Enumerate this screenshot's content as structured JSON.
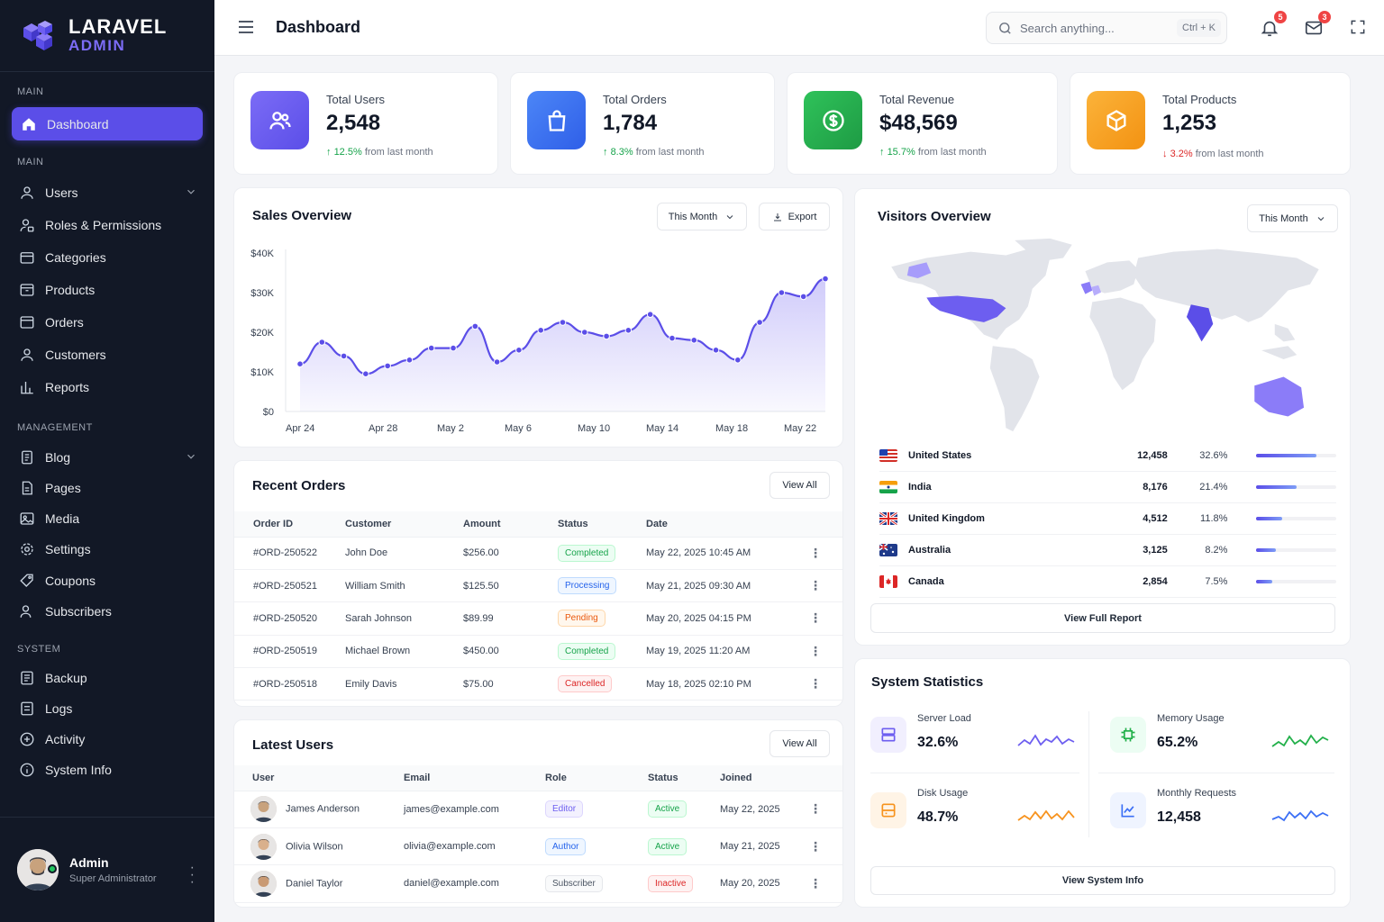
{
  "app": {
    "logo_line1": "LARAVEL",
    "logo_line2": "ADMIN"
  },
  "sidebar": {
    "sections": [
      "MAIN",
      "MAIN",
      "MANAGEMENT",
      "SYSTEM"
    ],
    "items": [
      "Dashboard",
      "Users",
      "Roles & Permissions",
      "Categories",
      "Products",
      "Orders",
      "Customers",
      "Reports",
      "Blog",
      "Pages",
      "Media",
      "Settings",
      "Coupons",
      "Subscribers",
      "Backup",
      "Logs",
      "Activity",
      "System Info"
    ],
    "user": {
      "name": "Admin",
      "role": "Super Administrator"
    }
  },
  "header": {
    "title": "Dashboard",
    "search_placeholder": "Search anything...",
    "shortcut": "Ctrl + K",
    "notifications_count": "5",
    "messages_count": "3"
  },
  "stats": [
    {
      "label": "Total Users",
      "value": "2,548",
      "change": "12.5%",
      "suffix": "from last month",
      "trend": "up",
      "color": "#6d5ef0"
    },
    {
      "label": "Total Orders",
      "value": "1,784",
      "change": "8.3%",
      "suffix": "from last month",
      "trend": "up",
      "color": "#3b6ff5"
    },
    {
      "label": "Total Revenue",
      "value": "$48,569",
      "change": "15.7%",
      "suffix": "from last month",
      "trend": "up",
      "color": "#22b04a"
    },
    {
      "label": "Total Products",
      "value": "1,253",
      "change": "3.2%",
      "suffix": "from last month",
      "trend": "down",
      "color": "#f7a21e"
    }
  ],
  "sales": {
    "title": "Sales Overview",
    "period": "This Month",
    "export": "Export"
  },
  "chart_data": {
    "type": "area",
    "title": "Sales Overview",
    "ylim": [
      0,
      40000
    ],
    "yticks": [
      "$0",
      "$10K",
      "$20K",
      "$30K",
      "$40K"
    ],
    "xticks": [
      "Apr 24",
      "Apr 28",
      "May 2",
      "May 6",
      "May 10",
      "May 14",
      "May 18",
      "May 22"
    ],
    "series": [
      {
        "values": [
          12000,
          17500,
          14000,
          9500,
          11500,
          13000,
          16000,
          16000,
          21500,
          12500,
          15500,
          20500,
          22500,
          20000,
          19000,
          20500,
          24500,
          18500,
          18000,
          15500,
          13000,
          22500,
          30000,
          29000,
          33500
        ]
      }
    ]
  },
  "orders": {
    "title": "Recent Orders",
    "view_all": "View All",
    "columns": [
      "Order ID",
      "Customer",
      "Amount",
      "Status",
      "Date"
    ],
    "rows": [
      {
        "id": "#ORD-250522",
        "customer": "John Doe",
        "amount": "$256.00",
        "status": "Completed",
        "date": "May 22, 2025 10:45 AM"
      },
      {
        "id": "#ORD-250521",
        "customer": "William Smith",
        "amount": "$125.50",
        "status": "Processing",
        "date": "May 21, 2025 09:30 AM"
      },
      {
        "id": "#ORD-250520",
        "customer": "Sarah Johnson",
        "amount": "$89.99",
        "status": "Pending",
        "date": "May 20, 2025 04:15 PM"
      },
      {
        "id": "#ORD-250519",
        "customer": "Michael Brown",
        "amount": "$450.00",
        "status": "Completed",
        "date": "May 19, 2025 11:20 AM"
      },
      {
        "id": "#ORD-250518",
        "customer": "Emily Davis",
        "amount": "$75.00",
        "status": "Cancelled",
        "date": "May 18, 2025 02:10 PM"
      }
    ]
  },
  "users": {
    "title": "Latest Users",
    "view_all": "View All",
    "columns": [
      "User",
      "Email",
      "Role",
      "Status",
      "Joined"
    ],
    "rows": [
      {
        "name": "James Anderson",
        "email": "james@example.com",
        "role": "Editor",
        "status": "Active",
        "joined": "May 22, 2025"
      },
      {
        "name": "Olivia Wilson",
        "email": "olivia@example.com",
        "role": "Author",
        "status": "Active",
        "joined": "May 21, 2025"
      },
      {
        "name": "Daniel Taylor",
        "email": "daniel@example.com",
        "role": "Subscriber",
        "status": "Inactive",
        "joined": "May 20, 2025"
      }
    ]
  },
  "visitors": {
    "title": "Visitors Overview",
    "period": "This Month",
    "view_full": "View Full Report",
    "countries": [
      {
        "name": "United States",
        "value": "12,458",
        "pct": "32.6%",
        "share": 0.75
      },
      {
        "name": "India",
        "value": "8,176",
        "pct": "21.4%",
        "share": 0.5
      },
      {
        "name": "United Kingdom",
        "value": "4,512",
        "pct": "11.8%",
        "share": 0.32
      },
      {
        "name": "Australia",
        "value": "3,125",
        "pct": "8.2%",
        "share": 0.24
      },
      {
        "name": "Canada",
        "value": "2,854",
        "pct": "7.5%",
        "share": 0.2
      }
    ]
  },
  "system": {
    "title": "System Statistics",
    "view_info": "View System Info",
    "items": [
      {
        "label": "Server Load",
        "value": "32.6%",
        "color": "#6d5ef0"
      },
      {
        "label": "Memory Usage",
        "value": "65.2%",
        "color": "#22b04a"
      },
      {
        "label": "Disk Usage",
        "value": "48.7%",
        "color": "#f7931e"
      },
      {
        "label": "Monthly Requests",
        "value": "12,458",
        "color": "#3b6ff5"
      }
    ]
  }
}
